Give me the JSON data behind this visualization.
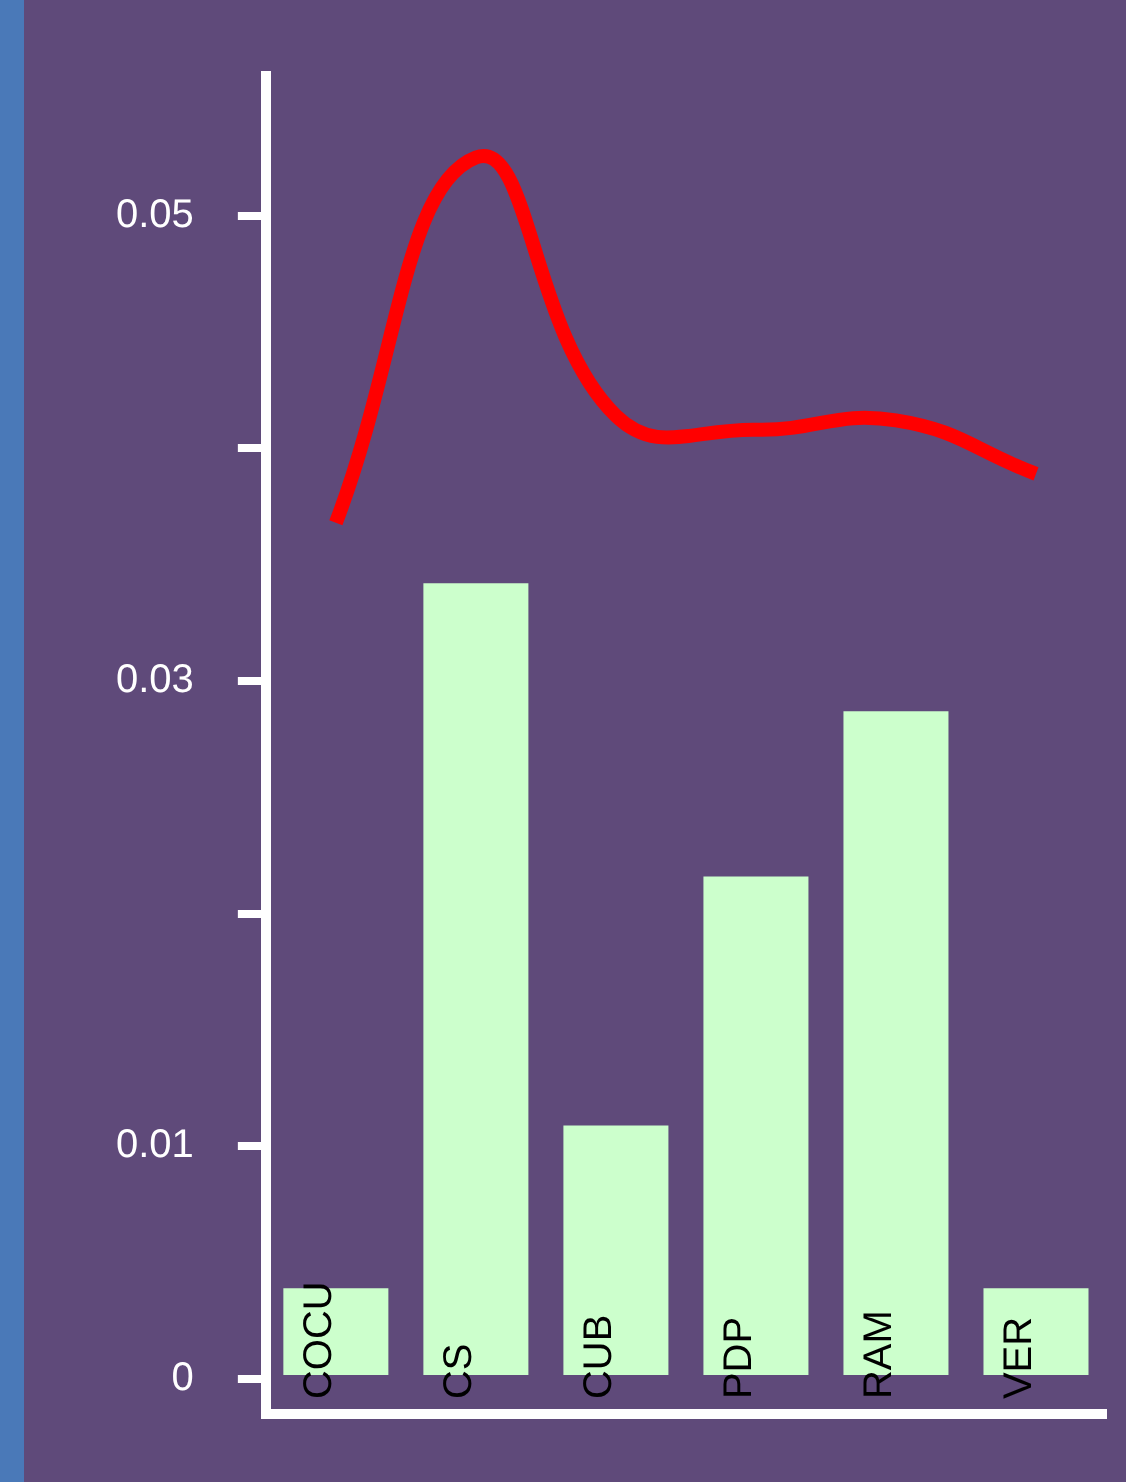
{
  "chart_data": {
    "type": "bar",
    "categories": [
      "COCU",
      "CS",
      "CUB",
      "PDP",
      "RAM",
      "VER"
    ],
    "series": [
      {
        "color": "#ccffcc",
        "values": [
          0.0039,
          0.0342,
          0.0109,
          0.0216,
          0.0287,
          0.0039
        ]
      },
      {
        "type": "line",
        "color": "#ff0000",
        "values": [
          0.0368,
          0.0525,
          0.0414,
          0.0408,
          0.0412,
          0.0389
        ]
      }
    ],
    "ylim": [
      -0.0015,
      0.056
    ],
    "yticks": [
      0,
      0.01,
      {
        "value": 0.02,
        "label": null
      },
      0.03,
      {
        "value": 0.04,
        "label": null
      },
      0.05
    ],
    "grid": false,
    "legend": false,
    "marker": "none",
    "line_style": "solid"
  }
}
